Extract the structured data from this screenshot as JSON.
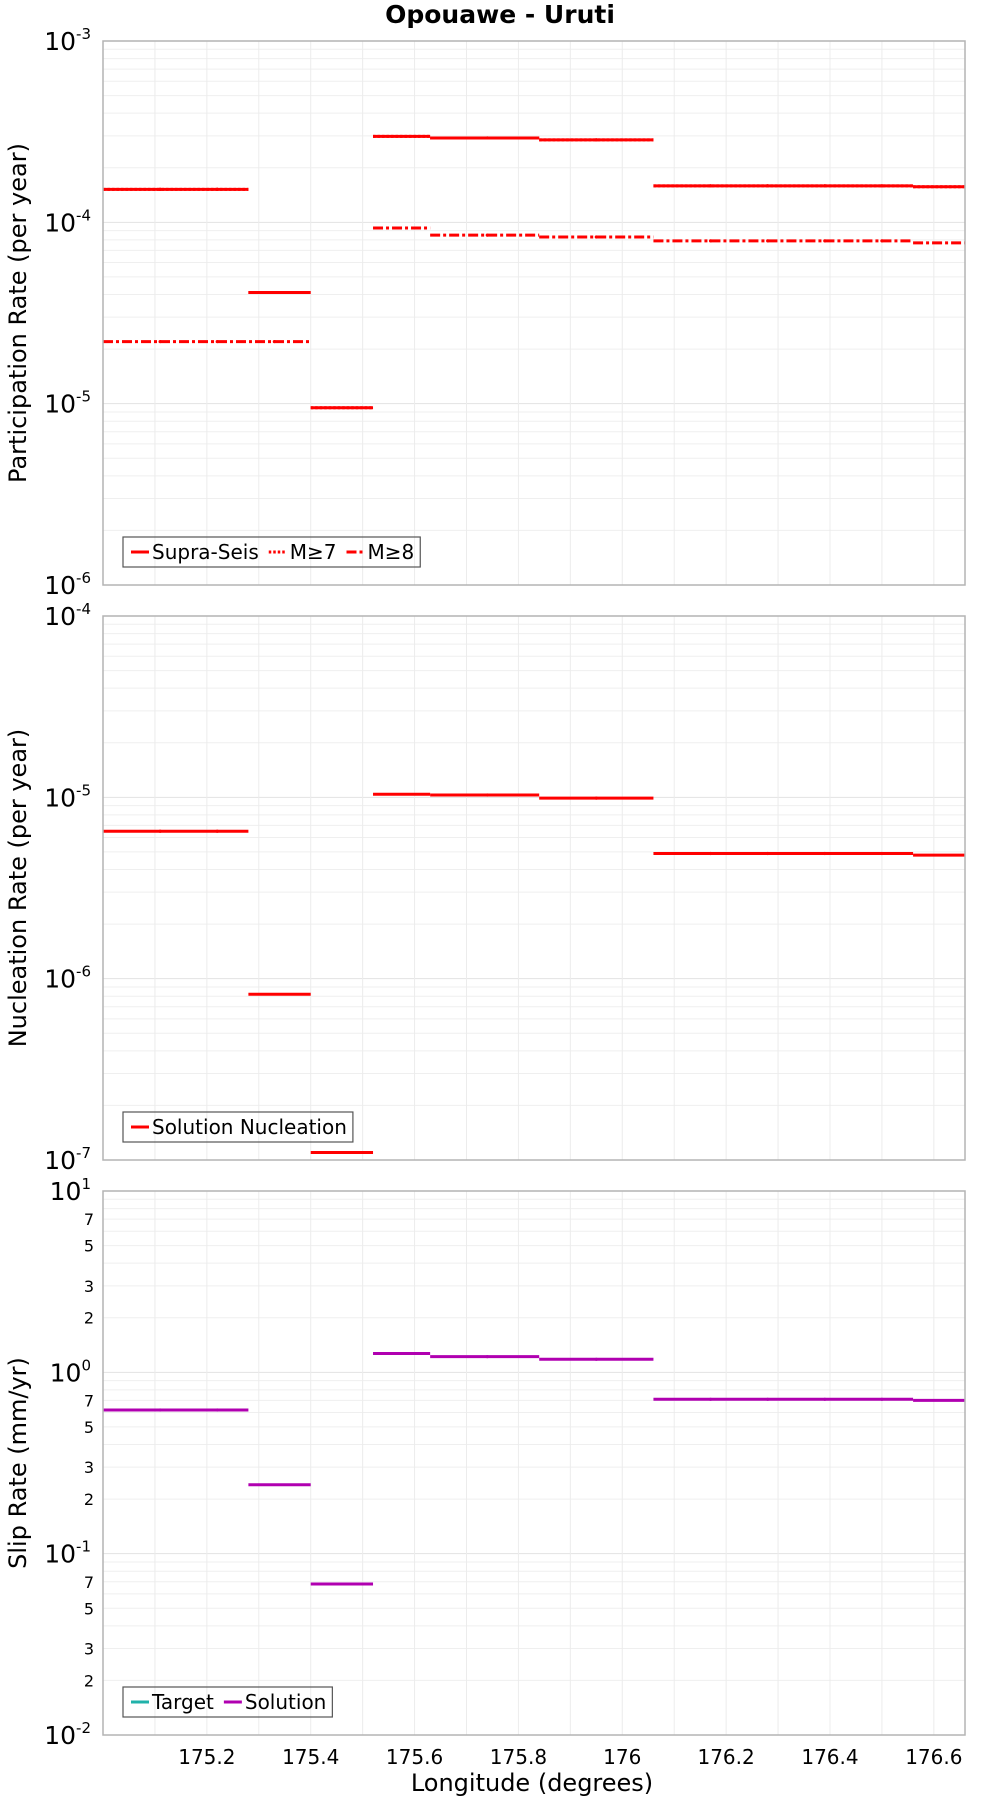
{
  "chart_data": {
    "type": "line",
    "title": "Opouawe - Uruti",
    "xlabel": "Longitude (degrees)",
    "xlim": [
      175.0,
      176.66
    ],
    "x_ticks": [
      "175.2",
      "175.4",
      "175.6",
      "175.8",
      "176",
      "176.2",
      "176.4",
      "176.6"
    ],
    "x_tick_values": [
      175.2,
      175.4,
      175.6,
      175.8,
      176.0,
      176.2,
      176.4,
      176.6
    ],
    "grid": true,
    "panels": [
      {
        "ylabel": "Participation Rate (per year)",
        "yscale": "log",
        "ylim_exp": [
          -6,
          -3
        ],
        "y_major_ticks": [
          {
            "base": "10",
            "exp": "-6"
          },
          {
            "base": "10",
            "exp": "-5"
          },
          {
            "base": "10",
            "exp": "-4"
          },
          {
            "base": "10",
            "exp": "-3"
          }
        ],
        "legend": {
          "position": "bottom-left",
          "entries": [
            "Supra-Seis",
            "M≥7",
            "M≥8"
          ]
        },
        "series": [
          {
            "name": "Supra-Seis",
            "color": "#ff0000",
            "style": "solid",
            "segments": [
              [
                175.0,
                175.28,
                0.000152
              ],
              [
                175.28,
                175.4,
                4.1e-05
              ],
              [
                175.4,
                175.52,
                9.5e-06
              ],
              [
                175.52,
                175.63,
                0.000298
              ],
              [
                175.63,
                175.84,
                0.000292
              ],
              [
                175.84,
                176.06,
                0.000285
              ],
              [
                176.06,
                176.56,
                0.000159
              ],
              [
                176.56,
                176.66,
                0.000157
              ]
            ]
          },
          {
            "name": "M≥7",
            "color": "#ff0000",
            "style": "dotted",
            "segments": [
              [
                175.0,
                175.28,
                0.000152
              ],
              [
                175.28,
                175.4,
                4.1e-05
              ],
              [
                175.4,
                175.52,
                9.5e-06
              ],
              [
                175.52,
                175.63,
                0.000298
              ],
              [
                175.63,
                175.84,
                0.000292
              ],
              [
                175.84,
                176.06,
                0.000285
              ],
              [
                176.06,
                176.56,
                0.000159
              ],
              [
                176.56,
                176.66,
                0.000157
              ]
            ]
          },
          {
            "name": "M≥8",
            "color": "#ff0000",
            "style": "dashdot",
            "segments": [
              [
                175.0,
                175.4,
                2.2e-05
              ],
              [
                175.52,
                175.63,
                9.3e-05
              ],
              [
                175.63,
                175.84,
                8.5e-05
              ],
              [
                175.84,
                176.06,
                8.3e-05
              ],
              [
                176.06,
                176.56,
                7.9e-05
              ],
              [
                176.56,
                176.66,
                7.7e-05
              ]
            ]
          }
        ]
      },
      {
        "ylabel": "Nucleation Rate (per year)",
        "yscale": "log",
        "ylim_exp": [
          -7,
          -4
        ],
        "y_major_ticks": [
          {
            "base": "10",
            "exp": "-7"
          },
          {
            "base": "10",
            "exp": "-6"
          },
          {
            "base": "10",
            "exp": "-5"
          },
          {
            "base": "10",
            "exp": "-4"
          }
        ],
        "legend": {
          "position": "bottom-left",
          "entries": [
            "Solution Nucleation"
          ]
        },
        "series": [
          {
            "name": "Solution Nucleation",
            "color": "#ff0000",
            "style": "solid",
            "segments": [
              [
                175.0,
                175.28,
                6.5e-06
              ],
              [
                175.28,
                175.4,
                8.2e-07
              ],
              [
                175.4,
                175.52,
                1.1e-07
              ],
              [
                175.52,
                175.63,
                1.04e-05
              ],
              [
                175.63,
                175.84,
                1.03e-05
              ],
              [
                175.84,
                176.06,
                9.9e-06
              ],
              [
                176.06,
                176.56,
                4.9e-06
              ],
              [
                176.56,
                176.66,
                4.8e-06
              ]
            ]
          }
        ]
      },
      {
        "ylabel": "Slip Rate (mm/yr)",
        "yscale": "log",
        "ylim_exp": [
          -2,
          1
        ],
        "y_major_ticks": [
          {
            "base": "10",
            "exp": "-2"
          },
          {
            "base": "10",
            "exp": "-1"
          },
          {
            "base": "10",
            "exp": "0"
          },
          {
            "base": "10",
            "exp": "1"
          }
        ],
        "y_minor_labels": [
          "2",
          "3",
          "5",
          "7"
        ],
        "legend": {
          "position": "bottom-left",
          "entries": [
            "Target",
            "Solution"
          ]
        },
        "series": [
          {
            "name": "Target",
            "color": "#20b2aa",
            "style": "solid",
            "segments": []
          },
          {
            "name": "Solution",
            "color": "#b000b0",
            "style": "solid",
            "segments": [
              [
                175.0,
                175.28,
                0.62
              ],
              [
                175.28,
                175.4,
                0.24
              ],
              [
                175.4,
                175.52,
                0.068
              ],
              [
                175.52,
                175.63,
                1.27
              ],
              [
                175.63,
                175.84,
                1.22
              ],
              [
                175.84,
                176.06,
                1.18
              ],
              [
                176.06,
                176.56,
                0.71
              ],
              [
                176.56,
                176.66,
                0.7
              ]
            ]
          }
        ]
      }
    ]
  }
}
